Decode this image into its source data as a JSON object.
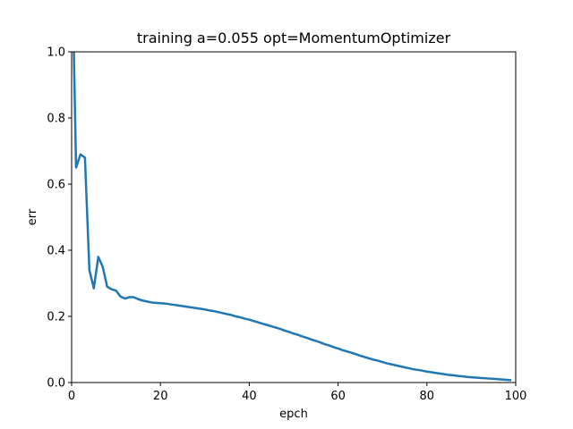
{
  "chart_data": {
    "type": "line",
    "title": "training a=0.055 opt=MomentumOptimizer",
    "xlabel": "epch",
    "ylabel": "err",
    "xlim": [
      0,
      100
    ],
    "ylim": [
      0.0,
      1.0
    ],
    "xticks": [
      0,
      20,
      40,
      60,
      80,
      100
    ],
    "xtick_labels": [
      "0",
      "20",
      "40",
      "60",
      "80",
      "100"
    ],
    "yticks": [
      0.0,
      0.2,
      0.4,
      0.6,
      0.8,
      1.0
    ],
    "ytick_labels": [
      "0.0",
      "0.2",
      "0.4",
      "0.6",
      "0.8",
      "1.0"
    ],
    "grid": false,
    "series_color": "#1f77b4",
    "series": [
      {
        "x": [
          0,
          1,
          2,
          3,
          4,
          5,
          6,
          7,
          8,
          9,
          10,
          11,
          12,
          13,
          14,
          15,
          16,
          17,
          18,
          19,
          20,
          21,
          22,
          23,
          24,
          25,
          26,
          27,
          28,
          29,
          30,
          31,
          32,
          33,
          34,
          35,
          36,
          37,
          38,
          39,
          40,
          41,
          42,
          43,
          44,
          45,
          46,
          47,
          48,
          49,
          50,
          51,
          52,
          53,
          54,
          55,
          56,
          57,
          58,
          59,
          60,
          61,
          62,
          63,
          64,
          65,
          66,
          67,
          68,
          69,
          70,
          71,
          72,
          73,
          74,
          75,
          76,
          77,
          78,
          79,
          80,
          81,
          82,
          83,
          84,
          85,
          86,
          87,
          88,
          89,
          90,
          91,
          92,
          93,
          94,
          95,
          96,
          97,
          98,
          99
        ],
        "y": [
          1.35,
          0.65,
          0.69,
          0.68,
          0.34,
          0.285,
          0.38,
          0.35,
          0.29,
          0.282,
          0.278,
          0.26,
          0.254,
          0.258,
          0.258,
          0.252,
          0.248,
          0.245,
          0.242,
          0.241,
          0.24,
          0.239,
          0.237,
          0.235,
          0.233,
          0.231,
          0.229,
          0.227,
          0.225,
          0.223,
          0.221,
          0.218,
          0.216,
          0.213,
          0.21,
          0.207,
          0.204,
          0.2,
          0.197,
          0.193,
          0.19,
          0.186,
          0.182,
          0.178,
          0.174,
          0.17,
          0.166,
          0.162,
          0.157,
          0.153,
          0.148,
          0.144,
          0.139,
          0.135,
          0.13,
          0.126,
          0.121,
          0.116,
          0.112,
          0.107,
          0.103,
          0.098,
          0.094,
          0.09,
          0.086,
          0.081,
          0.077,
          0.073,
          0.069,
          0.066,
          0.062,
          0.058,
          0.055,
          0.052,
          0.049,
          0.046,
          0.043,
          0.04,
          0.038,
          0.036,
          0.033,
          0.031,
          0.029,
          0.027,
          0.025,
          0.023,
          0.022,
          0.02,
          0.019,
          0.017,
          0.016,
          0.015,
          0.014,
          0.013,
          0.012,
          0.011,
          0.01,
          0.009,
          0.008,
          0.007
        ]
      }
    ]
  }
}
